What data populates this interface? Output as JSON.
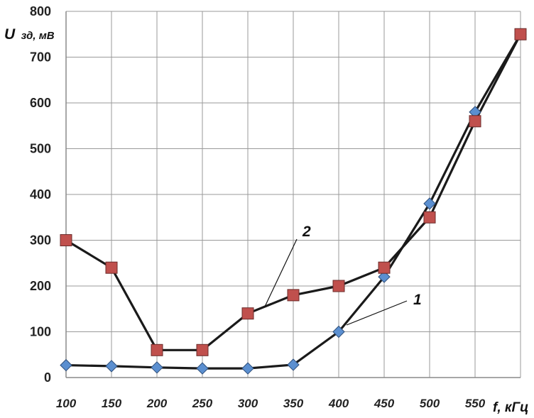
{
  "chart_data": {
    "type": "line",
    "ylabel": {
      "main": "U",
      "sub": "зд, мВ"
    },
    "xlabel": "f, кГц",
    "x": [
      100,
      150,
      200,
      250,
      300,
      350,
      400,
      450,
      500,
      550,
      600
    ],
    "x_tick_labels": [
      "100",
      "150",
      "200",
      "250",
      "300",
      "350",
      "400",
      "450",
      "500",
      "550"
    ],
    "y_ticks": [
      "0",
      "100",
      "200",
      "300",
      "400",
      "500",
      "600",
      "700",
      "800"
    ],
    "ylim": [
      0,
      800
    ],
    "grid": true,
    "series": [
      {
        "name": "1",
        "marker": "diamond",
        "color": "#5b8fd0",
        "values": [
          27,
          25,
          22,
          20,
          20,
          28,
          100,
          220,
          380,
          580,
          750
        ]
      },
      {
        "name": "2",
        "marker": "square",
        "color": "#c0504d",
        "values": [
          300,
          240,
          60,
          60,
          140,
          180,
          200,
          240,
          350,
          560,
          750
        ]
      }
    ]
  }
}
